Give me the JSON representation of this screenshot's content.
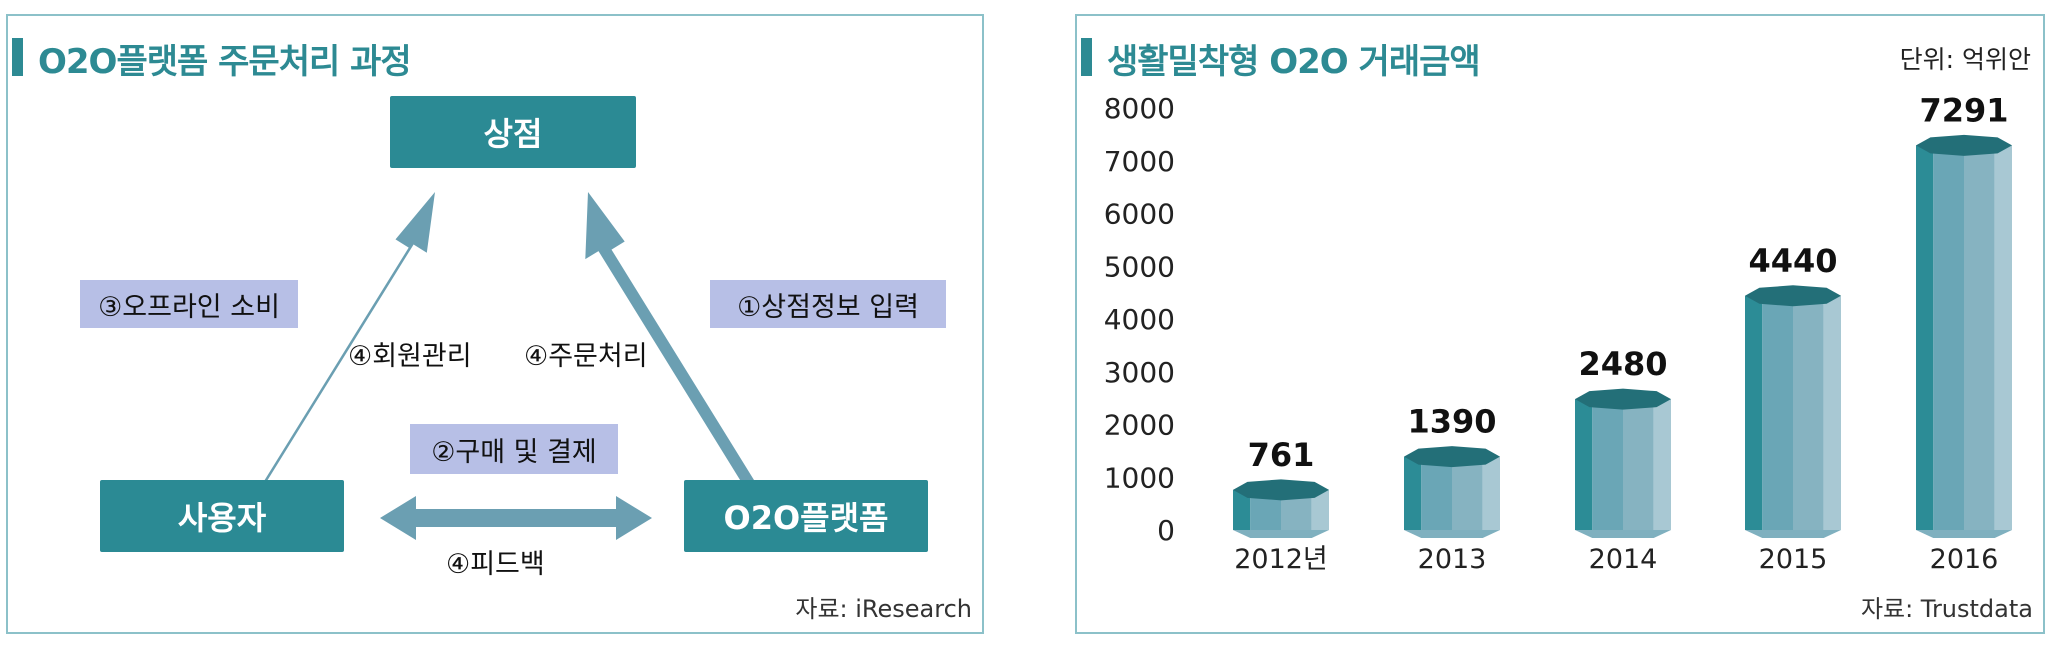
{
  "left": {
    "title": "O2O플랫폼 주문처리 과정",
    "source": "자료: iResearch",
    "nodes": {
      "store": "상점",
      "user": "사용자",
      "platform": "O2O플랫폼"
    },
    "labels": {
      "offline": "③오프라인 소비",
      "member": "④회원관리",
      "order": "④주문처리",
      "storeinfo": "①상점정보 입력",
      "purchase": "②구매 및 결제",
      "feedback": "④피드백"
    }
  },
  "right": {
    "title": "생활밀착형 O2O 거래금액",
    "unit": "단위: 억위안",
    "source": "자료: Trustdata"
  },
  "colors": {
    "accent": "#2d8a93",
    "node": "#2b8a94",
    "arrow": "#6b9fb2",
    "label_bg": "#b7bfe6",
    "border": "#8cc1c9"
  },
  "chart_data": {
    "type": "bar",
    "categories": [
      "2012년",
      "2013",
      "2014",
      "2015",
      "2016"
    ],
    "values": [
      761,
      1390,
      2480,
      4440,
      7291
    ],
    "title": "생활밀착형 O2O 거래금액",
    "xlabel": "",
    "ylabel": "",
    "unit": "단위: 억위안",
    "ylim": [
      0,
      8000
    ],
    "yticks": [
      0,
      1000,
      2000,
      3000,
      4000,
      5000,
      6000,
      7000,
      8000
    ],
    "grid": false,
    "legend": "none"
  }
}
